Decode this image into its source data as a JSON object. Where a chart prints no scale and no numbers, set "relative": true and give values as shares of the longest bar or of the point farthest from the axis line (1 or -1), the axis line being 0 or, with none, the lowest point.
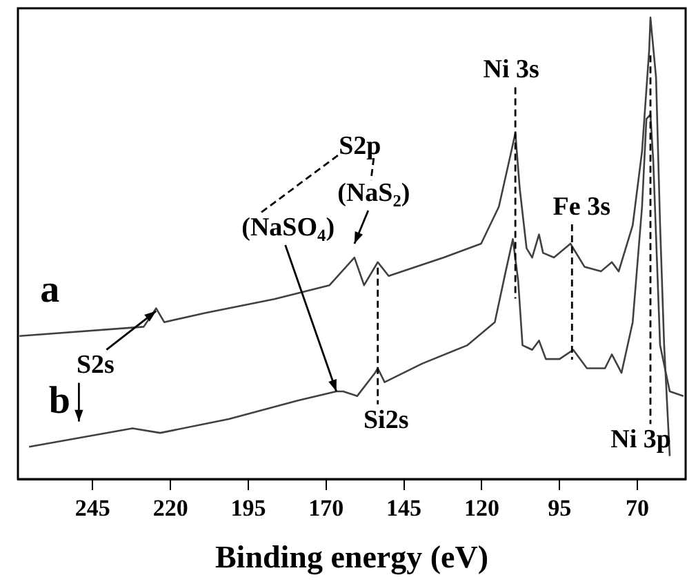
{
  "chart_data": {
    "type": "line",
    "xlabel": "Binding energy (eV)",
    "relative": true,
    "grid": false,
    "legend": false,
    "marker": "none",
    "line_style": "solid",
    "xlim": [
      269,
      54.5
    ],
    "xticks": [
      245,
      220,
      195,
      170,
      145,
      120,
      95,
      70
    ],
    "series": [
      {
        "name": "a",
        "color": "#404040",
        "x": [
          268.5,
          228.6,
          224.6,
          222,
          208.7,
          186.6,
          168.9,
          160.9,
          157.8,
          153.4,
          149.9,
          132.2,
          120.2,
          114.5,
          110.5,
          109.2,
          107.8,
          105.6,
          103.8,
          101.6,
          100.3,
          96.8,
          91.5,
          87,
          81.7,
          78.2,
          76,
          71.5,
          68.5,
          66.2,
          65.8,
          64,
          62.7,
          61.4,
          59.6
        ],
        "values": [
          0.31,
          0.33,
          0.37,
          0.34,
          0.36,
          0.39,
          0.42,
          0.48,
          0.42,
          0.47,
          0.44,
          0.48,
          0.51,
          0.59,
          0.71,
          0.75,
          0.63,
          0.5,
          0.48,
          0.53,
          0.49,
          0.48,
          0.51,
          0.46,
          0.45,
          0.47,
          0.45,
          0.55,
          0.71,
          0.93,
          1.0,
          0.87,
          0.55,
          0.29,
          0.05
        ]
      },
      {
        "name": "b",
        "color": "#404040",
        "x": [
          265.4,
          232.2,
          223.3,
          201.2,
          179.1,
          166.7,
          164.5,
          160,
          154.3,
          153.4,
          151.2,
          139.2,
          124.6,
          115.8,
          112.3,
          110,
          108.3,
          106.9,
          103.8,
          101.6,
          99.4,
          95,
          90.6,
          86.2,
          80.4,
          78.2,
          75.1,
          71.5,
          68.5,
          67.1,
          65.8,
          64.9,
          62.7,
          59.6,
          55.2
        ],
        "values": [
          0.07,
          0.11,
          0.1,
          0.13,
          0.17,
          0.19,
          0.19,
          0.18,
          0.23,
          0.24,
          0.21,
          0.25,
          0.29,
          0.34,
          0.45,
          0.52,
          0.43,
          0.29,
          0.28,
          0.3,
          0.26,
          0.26,
          0.28,
          0.24,
          0.24,
          0.27,
          0.23,
          0.34,
          0.59,
          0.78,
          0.79,
          0.69,
          0.29,
          0.19,
          0.18
        ]
      }
    ],
    "annotations": [
      {
        "text": "(NaSO$_{4}$)",
        "x": 166.7,
        "y": 0.19
      },
      {
        "text": "(NaS$_{2}$)",
        "x": 160.9,
        "y": 0.48
      },
      "S2p",
      {
        "text": "Ni 3s",
        "x": 109.2,
        "y": 0.75
      },
      {
        "text": "Fe 3s",
        "x": 91,
        "y": 0.51
      },
      {
        "text": "S2s",
        "x": 224.6,
        "y": 0.37
      },
      {
        "text": "Si2s",
        "x": 153.4,
        "y": 0.47
      },
      {
        "text": "Ni 3p",
        "x": 65.8,
        "y": 0.93
      }
    ]
  }
}
